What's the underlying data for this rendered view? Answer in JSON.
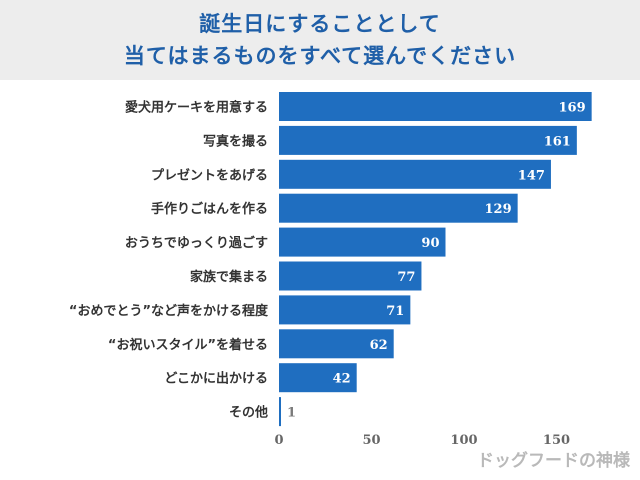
{
  "chart_data": {
    "type": "bar",
    "orientation": "horizontal",
    "title_lines": [
      "誕生日にすることとして",
      "当てはまるものをすべて選んでください"
    ],
    "categories": [
      "愛犬用ケーキを用意する",
      "写真を撮る",
      "プレゼントをあげる",
      "手作りごはんを作る",
      "おうちでゆっくり過ごす",
      "家族で集まる",
      "“おめでとう”など声をかける程度",
      "“お祝いスタイル”を着せる",
      "どこかに出かける",
      "その他"
    ],
    "values": [
      169,
      161,
      147,
      129,
      90,
      77,
      71,
      62,
      42,
      1
    ],
    "xlim": [
      0,
      170
    ],
    "x_ticks": [
      0,
      50,
      100,
      150
    ],
    "grid": false,
    "legend": "none",
    "bar_color": "#1f6ec0",
    "label_color": "#ffffff",
    "outside_label_color": "#7a7a7a"
  },
  "watermark": "ドッグフードの神様"
}
